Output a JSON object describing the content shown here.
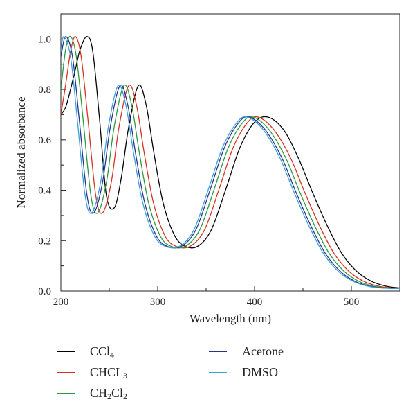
{
  "chart_data": {
    "type": "line",
    "xlabel": "Wavelength (nm)",
    "ylabel": "Normalized absorbance",
    "xlim": [
      200,
      550
    ],
    "ylim": [
      0,
      1.1
    ],
    "xticks": [
      200,
      300,
      400,
      500
    ],
    "yticks": [
      0.0,
      0.2,
      0.4,
      0.6,
      0.8,
      1.0
    ],
    "xtick_labels": [
      "200",
      "300",
      "400",
      "500"
    ],
    "ytick_labels": [
      "0.0",
      "0.2",
      "0.4",
      "0.6",
      "0.8",
      "1.0"
    ],
    "grid": false,
    "legend_position": "bottom",
    "series": [
      {
        "name": "CCl4",
        "label_main": "CCl",
        "label_sub": "4",
        "color": "#000000",
        "x": [
          200,
          205,
          210,
          215,
          220,
          227,
          233,
          240,
          247,
          255,
          262,
          270,
          280,
          288,
          296,
          305,
          315,
          325,
          340,
          355,
          370,
          385,
          400,
          414,
          430,
          445,
          460,
          475,
          490,
          505,
          520,
          535,
          550
        ],
        "y": [
          0.7,
          0.73,
          0.8,
          0.88,
          0.96,
          1.01,
          0.95,
          0.68,
          0.38,
          0.33,
          0.44,
          0.65,
          0.815,
          0.74,
          0.55,
          0.36,
          0.24,
          0.185,
          0.175,
          0.24,
          0.4,
          0.57,
          0.67,
          0.69,
          0.64,
          0.53,
          0.39,
          0.26,
          0.15,
          0.08,
          0.04,
          0.02,
          0.012
        ]
      },
      {
        "name": "CHCL3",
        "label_main": "CHCL",
        "label_sub": "3",
        "color": "#d6311f",
        "x": [
          200,
          205,
          210,
          215,
          221,
          228,
          236,
          243,
          252,
          260,
          270,
          278,
          286,
          295,
          305,
          315,
          332,
          348,
          363,
          378,
          393,
          404,
          420,
          437,
          452,
          467,
          482,
          497,
          512,
          527,
          542,
          550
        ],
        "y": [
          0.7,
          0.82,
          0.95,
          1.01,
          0.93,
          0.68,
          0.38,
          0.31,
          0.43,
          0.65,
          0.815,
          0.74,
          0.55,
          0.36,
          0.24,
          0.185,
          0.175,
          0.24,
          0.4,
          0.57,
          0.67,
          0.69,
          0.64,
          0.53,
          0.39,
          0.26,
          0.15,
          0.08,
          0.04,
          0.02,
          0.012,
          0.01
        ]
      },
      {
        "name": "CH2Cl2",
        "label_main": "CH",
        "label_sub": "2",
        "label_tail": "Cl",
        "label_sub2": "2",
        "color": "#2a9a3e",
        "x": [
          200,
          205,
          210,
          216,
          223,
          231,
          238,
          247,
          255,
          265,
          273,
          281,
          290,
          300,
          310,
          327,
          343,
          358,
          373,
          388,
          399,
          415,
          432,
          447,
          462,
          477,
          492,
          507,
          522,
          537,
          550
        ],
        "y": [
          0.8,
          0.96,
          1.01,
          0.93,
          0.68,
          0.38,
          0.31,
          0.43,
          0.65,
          0.815,
          0.74,
          0.55,
          0.36,
          0.24,
          0.185,
          0.175,
          0.24,
          0.4,
          0.57,
          0.67,
          0.69,
          0.64,
          0.53,
          0.39,
          0.26,
          0.15,
          0.08,
          0.04,
          0.02,
          0.012,
          0.01
        ]
      },
      {
        "name": "Acetone",
        "color": "#26348c",
        "x": [
          200,
          205,
          212,
          219,
          227,
          234,
          243,
          251,
          261,
          269,
          277,
          286,
          296,
          306,
          323,
          339,
          354,
          369,
          384,
          395,
          411,
          428,
          443,
          458,
          473,
          488,
          503,
          518,
          533,
          550
        ],
        "y": [
          0.93,
          1.01,
          0.93,
          0.68,
          0.38,
          0.31,
          0.43,
          0.65,
          0.815,
          0.74,
          0.55,
          0.36,
          0.24,
          0.185,
          0.175,
          0.24,
          0.4,
          0.57,
          0.67,
          0.69,
          0.64,
          0.53,
          0.39,
          0.26,
          0.15,
          0.08,
          0.04,
          0.02,
          0.012,
          0.01
        ]
      },
      {
        "name": "DMSO",
        "color": "#3aa0d8",
        "x": [
          200,
          203,
          210,
          217,
          225,
          232,
          241,
          249,
          259,
          267,
          275,
          284,
          294,
          304,
          321,
          337,
          352,
          367,
          382,
          393,
          409,
          426,
          441,
          456,
          471,
          486,
          501,
          516,
          531,
          550
        ],
        "y": [
          0.95,
          1.01,
          0.93,
          0.68,
          0.38,
          0.31,
          0.43,
          0.65,
          0.815,
          0.74,
          0.55,
          0.36,
          0.24,
          0.185,
          0.175,
          0.24,
          0.4,
          0.57,
          0.67,
          0.69,
          0.64,
          0.53,
          0.39,
          0.26,
          0.15,
          0.08,
          0.04,
          0.02,
          0.012,
          0.01
        ]
      }
    ]
  }
}
